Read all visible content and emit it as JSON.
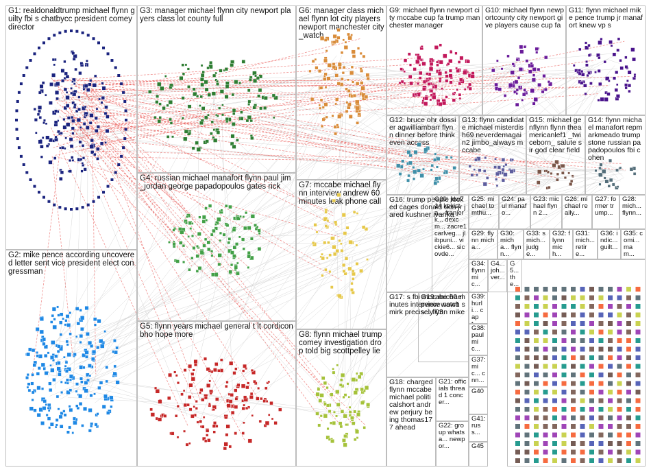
{
  "colors": {
    "G1": "#1a237e",
    "G2": "#1e88e5",
    "G3": "#2e7d32",
    "G4": "#43a047",
    "G5": "#c62828",
    "G6": "#d98c3a",
    "G7": "#e6c84a",
    "G8": "#a5c23a",
    "G9": "#c2185b",
    "G10": "#6a1b9a",
    "G11": "#4a148c",
    "G12": "#3f8fa8",
    "G13": "#5e5e9e",
    "G14": "#546e7a",
    "G15": "#795548",
    "edge": "#e53935",
    "frame": "#bdbdbd"
  },
  "groups": [
    {
      "id": "G1",
      "label": "G1: realdonaldtrump michael flynn guilty fbi s chatbycc president comey director"
    },
    {
      "id": "G2",
      "label": "G2: mike pence according uncovered letter sent vice president elect congressman"
    },
    {
      "id": "G3",
      "label": "G3: manager michael flynn city newport players class lot county full"
    },
    {
      "id": "G4",
      "label": "G4: russian michael manafort flynn paul jim_jordan george papadopoulos gates rick"
    },
    {
      "id": "G5",
      "label": "G5: flynn years michael general t lt cordicon bho hope more"
    },
    {
      "id": "G6",
      "label": "G6: manager class michael flynn lot city players newport manchester city_watch"
    },
    {
      "id": "G7",
      "label": "G7: mccabe michael flynn interview andrew 60 minutes leak phone call"
    },
    {
      "id": "G8",
      "label": "G8: flynn michael trump comey investigation drop told big scottpelley lie"
    },
    {
      "id": "G9",
      "label": "G9: michael flynn newport city mccabe cup fa trump manchester manager"
    },
    {
      "id": "G10",
      "label": "G10: michael flynn newportcounty city newport give players cause cup fa"
    },
    {
      "id": "G11",
      "label": "G11: flynn michael mike pence trump jr manafort knew vp s"
    },
    {
      "id": "G12",
      "label": "G12: bruce ohr dossier agwilliambarr flynn dinner before think even access"
    },
    {
      "id": "G13",
      "label": "G13: flynn candidate michael misterdish69 neverdemagain2 jimbo_always mccabe"
    },
    {
      "id": "G15",
      "label": "G15: michael genflynn flynn theamericanlef1 _twiceborn_ salute sir god clear field"
    },
    {
      "id": "G14",
      "label": "G14: flynn michael manafort repmarkmeado trump stone russian papadopoulos fbi cohen"
    },
    {
      "id": "G16",
      "label": "G16: trump people locked cages donald don jr jared kushner ivanka"
    },
    {
      "id": "G20",
      "label": "G20: jdw714 kekista... franjerk... dexcm... zacre1 carlveg... jlibpuni... vickie6... sicovde..."
    },
    {
      "id": "G25",
      "label": "G25: michael tomthu..."
    },
    {
      "id": "G24",
      "label": "G24: paul manafo..."
    },
    {
      "id": "G23",
      "label": "G23: michael flynn 2..."
    },
    {
      "id": "G26",
      "label": "G26: michael really..."
    },
    {
      "id": "G27",
      "label": "G27: former trump..."
    },
    {
      "id": "G28",
      "label": "G28: mich... flynn..."
    },
    {
      "id": "G29",
      "label": "G29: flynn micha..."
    },
    {
      "id": "G30",
      "label": "G30: micha... flynn..."
    },
    {
      "id": "G33",
      "label": "G33: s mich... judge..."
    },
    {
      "id": "G32",
      "label": "G32: flynn mich..."
    },
    {
      "id": "G31",
      "label": "G31: mich... retire..."
    },
    {
      "id": "G36",
      "label": "G36: indic... guilt..."
    },
    {
      "id": "G35",
      "label": "G35: comi... mam..."
    },
    {
      "id": "G19",
      "label": "G19: michael pence now1s... flynn mike"
    },
    {
      "id": "G34",
      "label": "G34: flynn mic..."
    },
    {
      "id": "G39",
      "label": "G39: hurli... capt..."
    },
    {
      "id": "G38",
      "label": "G38: paul mic..."
    },
    {
      "id": "G37",
      "label": "G37: mic... cnn..."
    },
    {
      "id": "G17",
      "label": "G17: s fbi mccabe 60 minutes interview watch smirk precisely 03"
    },
    {
      "id": "G18",
      "label": "G18: charged flynn mccabe michael politicalshort andrew perjury being thomas177 ahead"
    },
    {
      "id": "G21",
      "label": "G21: officials thread 1 concer..."
    },
    {
      "id": "G22",
      "label": "G22: group whatsa... newpor..."
    },
    {
      "id": "G40",
      "label": "G40"
    },
    {
      "id": "G41",
      "label": "G41: russ..."
    },
    {
      "id": "G45",
      "label": "G45"
    },
    {
      "id": "G4x1",
      "label": "G4... joh... ver..."
    },
    {
      "id": "G5x1",
      "label": "G5... the..."
    }
  ]
}
